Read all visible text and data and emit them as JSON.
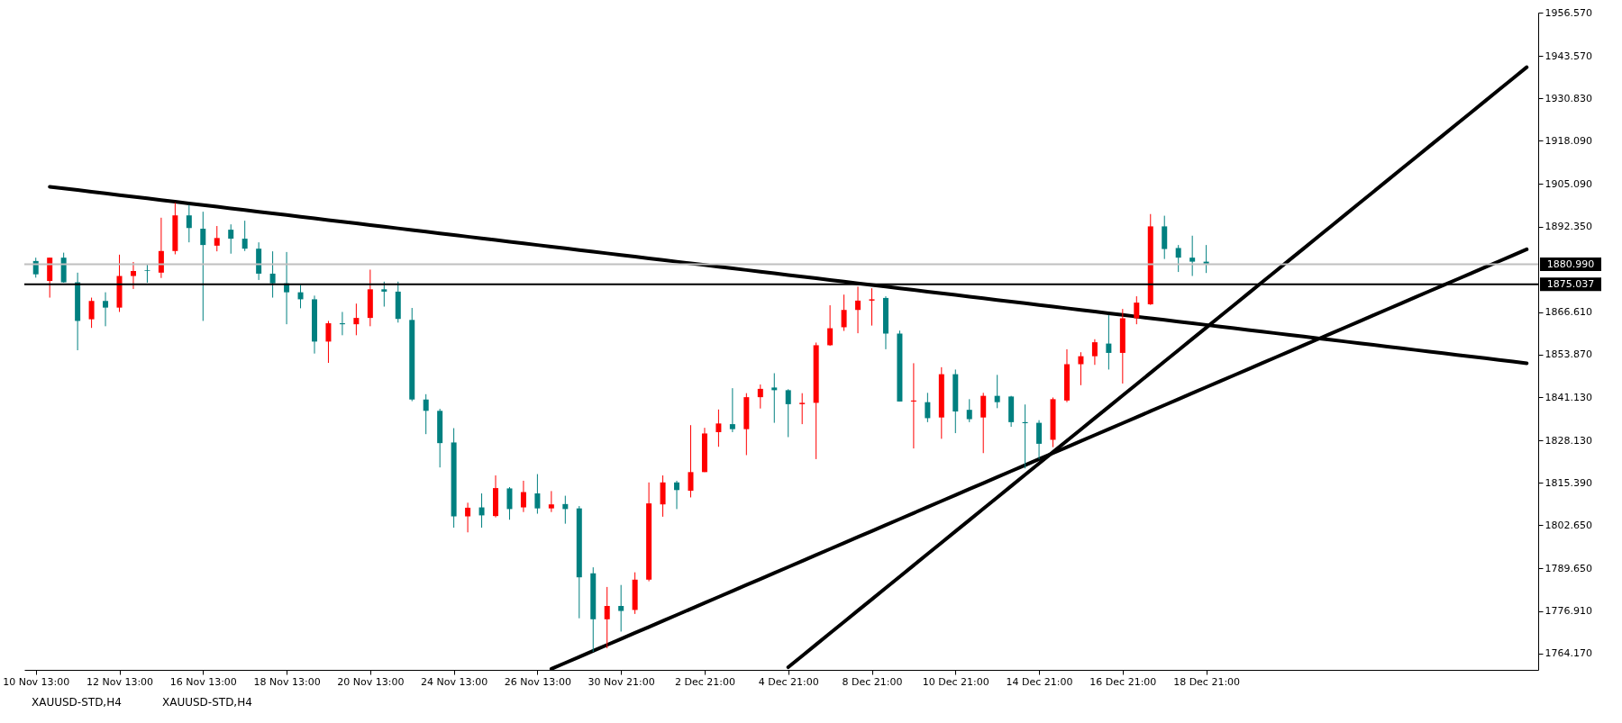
{
  "chart_data": {
    "type": "candlestick",
    "categories": [
      "10 Nov 13:00",
      null,
      null,
      null,
      null,
      null,
      "12 Nov 13:00",
      null,
      null,
      null,
      null,
      null,
      "16 Nov 13:00",
      null,
      null,
      null,
      null,
      null,
      "18 Nov 13:00",
      null,
      null,
      null,
      null,
      null,
      "20 Nov 13:00",
      null,
      null,
      null,
      null,
      null,
      "24 Nov 13:00",
      null,
      null,
      null,
      null,
      null,
      "26 Nov 13:00",
      null,
      null,
      null,
      null,
      null,
      "30 Nov 21:00",
      null,
      null,
      null,
      null,
      null,
      "2 Dec 21:00",
      null,
      null,
      null,
      null,
      null,
      "4 Dec 21:00",
      null,
      null,
      null,
      null,
      null,
      "8 Dec 21:00",
      null,
      null,
      null,
      null,
      null,
      "10 Dec 21:00",
      null,
      null,
      null,
      null,
      null,
      "14 Dec 21:00",
      null,
      null,
      null,
      null,
      null,
      "16 Dec 21:00",
      null,
      null,
      null,
      null,
      null,
      "18 Dec 21:00",
      null,
      null,
      null,
      null,
      null,
      null,
      null,
      null,
      null,
      null,
      null,
      null,
      null,
      null,
      null,
      null,
      null,
      null,
      null,
      null,
      null,
      null,
      null
    ],
    "ohlc": [
      [
        1882,
        1883,
        1877,
        1878
      ],
      [
        1876,
        1883,
        1871,
        1883
      ],
      [
        1883,
        1884.5,
        1875.5,
        1875.6
      ],
      [
        1875.6,
        1878.5,
        1855.2,
        1864
      ],
      [
        1864.5,
        1871,
        1861.9,
        1870
      ],
      [
        1870,
        1872.6,
        1862.4,
        1868
      ],
      [
        1868,
        1883.9,
        1866.7,
        1877.5
      ],
      [
        1877.5,
        1881.7,
        1873.6,
        1879
      ],
      [
        1879.2,
        1881,
        1875.5,
        1879
      ],
      [
        1878.5,
        1895,
        1876.9,
        1885
      ],
      [
        1885,
        1899.5,
        1884,
        1895.7
      ],
      [
        1895.7,
        1898.9,
        1887.6,
        1891.9
      ],
      [
        1891.7,
        1896.8,
        1864,
        1886.8
      ],
      [
        1886.6,
        1892.5,
        1884.9,
        1888.9
      ],
      [
        1891.4,
        1893,
        1884.2,
        1888.7
      ],
      [
        1888.7,
        1894.1,
        1885,
        1885.7
      ],
      [
        1885.7,
        1887.6,
        1876.3,
        1878.2
      ],
      [
        1878.2,
        1884.9,
        1871,
        1875.3
      ],
      [
        1875.3,
        1884.7,
        1863,
        1872.6
      ],
      [
        1872.6,
        1874.8,
        1867.8,
        1870.5
      ],
      [
        1870.5,
        1871.6,
        1854.2,
        1857.8
      ],
      [
        1857.8,
        1864,
        1851.4,
        1863.3
      ],
      [
        1863.3,
        1866.7,
        1859.7,
        1863
      ],
      [
        1863,
        1869.2,
        1859.7,
        1864.9
      ],
      [
        1864.9,
        1879.4,
        1862.4,
        1873.5
      ],
      [
        1873.5,
        1875.8,
        1868.3,
        1872.8
      ],
      [
        1872.8,
        1875.8,
        1863.5,
        1864.6
      ],
      [
        1864.3,
        1867.9,
        1839.9,
        1840.4
      ],
      [
        1840.4,
        1842,
        1830,
        1837
      ],
      [
        1837,
        1837.6,
        1820,
        1827.3
      ],
      [
        1827.5,
        1831.8,
        1801.9,
        1805.3
      ],
      [
        1805.3,
        1809.4,
        1800.5,
        1807.9
      ],
      [
        1808,
        1812.2,
        1801.9,
        1805.6
      ],
      [
        1805.4,
        1817.6,
        1805,
        1813.8
      ],
      [
        1813.7,
        1814.1,
        1804.3,
        1807.5
      ],
      [
        1808,
        1816,
        1806.6,
        1812.6
      ],
      [
        1812.2,
        1818,
        1806.1,
        1807.7
      ],
      [
        1807.7,
        1812.9,
        1806.6,
        1808.9
      ],
      [
        1809,
        1811.5,
        1803.1,
        1807.5
      ],
      [
        1807.7,
        1808.4,
        1774.7,
        1787
      ],
      [
        1788.2,
        1790,
        1764.6,
        1774.4
      ],
      [
        1774.4,
        1784.1,
        1765.7,
        1778.4
      ],
      [
        1778.4,
        1784.7,
        1770.7,
        1776.9
      ],
      [
        1777.2,
        1788.5,
        1776,
        1786.3
      ],
      [
        1786.3,
        1815.5,
        1785.8,
        1809.2
      ],
      [
        1808.9,
        1817.6,
        1805.2,
        1815.5
      ],
      [
        1815.5,
        1816,
        1807.5,
        1813.2
      ],
      [
        1813,
        1832.7,
        1811,
        1818.6
      ],
      [
        1818.6,
        1831.9,
        1818.6,
        1830.2
      ],
      [
        1830.6,
        1837.4,
        1826.2,
        1833.2
      ],
      [
        1833,
        1843.8,
        1830.6,
        1831.5
      ],
      [
        1831.5,
        1842.3,
        1823.7,
        1841.1
      ],
      [
        1841.1,
        1844.9,
        1837.7,
        1843.6
      ],
      [
        1844,
        1848.3,
        1833.4,
        1843.2
      ],
      [
        1843.2,
        1843.5,
        1829.1,
        1839
      ],
      [
        1839,
        1842.3,
        1833,
        1839.4
      ],
      [
        1839.4,
        1857.5,
        1822.5,
        1856.7
      ],
      [
        1856.7,
        1868.7,
        1856.5,
        1861.8
      ],
      [
        1862.1,
        1871.9,
        1861,
        1867.3
      ],
      [
        1867.3,
        1874.3,
        1860.3,
        1870.1
      ],
      [
        1870.1,
        1873.8,
        1862.6,
        1870.5
      ],
      [
        1870.9,
        1871.4,
        1855.5,
        1860.2
      ],
      [
        1860.2,
        1861.1,
        1839.8,
        1839.8
      ],
      [
        1839.8,
        1851.3,
        1825.7,
        1840.1
      ],
      [
        1839.6,
        1842.4,
        1833.6,
        1834.8
      ],
      [
        1835,
        1850.1,
        1828.6,
        1848
      ],
      [
        1848,
        1849.4,
        1830.3,
        1836.8
      ],
      [
        1837.3,
        1840.5,
        1833.6,
        1834.5
      ],
      [
        1835,
        1842.4,
        1824.3,
        1841.5
      ],
      [
        1841.5,
        1847.8,
        1837.8,
        1839.6
      ],
      [
        1841.3,
        1841.5,
        1832.2,
        1833.6
      ],
      [
        1833.6,
        1838.9,
        1819.7,
        1833.3
      ],
      [
        1833.4,
        1834.2,
        1822.5,
        1827.1
      ],
      [
        1828.3,
        1841,
        1826.1,
        1840.5
      ],
      [
        1840.1,
        1855.5,
        1839.6,
        1851
      ],
      [
        1851,
        1854.6,
        1844.7,
        1853.4
      ],
      [
        1853.4,
        1858.5,
        1850.8,
        1857.6
      ],
      [
        1857.2,
        1865.8,
        1849.4,
        1854.4
      ],
      [
        1854.4,
        1867.6,
        1845.2,
        1864.8
      ],
      [
        1864.8,
        1871.4,
        1863,
        1869.5
      ],
      [
        1869,
        1896.1,
        1868.8,
        1892.4
      ],
      [
        1892.4,
        1895.6,
        1882.6,
        1885.6
      ],
      [
        1885.9,
        1886.8,
        1878.7,
        1883
      ],
      [
        1883,
        1889.6,
        1877.5,
        1881.8
      ],
      [
        1881.8,
        1886.8,
        1878.4,
        1881.2
      ],
      null,
      null,
      null,
      null,
      null,
      null,
      null,
      null,
      null,
      null,
      null,
      null,
      null,
      null,
      null,
      null,
      null,
      null,
      null,
      null,
      null,
      null,
      null
    ],
    "colors": [
      "#008080",
      "#ff0000",
      "#008080",
      "#008080",
      "#ff0000",
      "#008080",
      "#ff0000",
      "#ff0000",
      "#008080",
      "#ff0000",
      "#ff0000",
      "#008080",
      "#008080",
      "#ff0000",
      "#008080",
      "#008080",
      "#008080",
      "#008080",
      "#008080",
      "#008080",
      "#008080",
      "#ff0000",
      "#008080",
      "#ff0000",
      "#ff0000",
      "#008080",
      "#008080",
      "#008080",
      "#008080",
      "#008080",
      "#008080",
      "#ff0000",
      "#008080",
      "#ff0000",
      "#008080",
      "#ff0000",
      "#008080",
      "#ff0000",
      "#008080",
      "#008080",
      "#008080",
      "#ff0000",
      "#008080",
      "#ff0000",
      "#ff0000",
      "#ff0000",
      "#008080",
      "#ff0000",
      "#ff0000",
      "#ff0000",
      "#008080",
      "#ff0000",
      "#ff0000",
      "#008080",
      "#008080",
      "#ff0000",
      "#ff0000",
      "#ff0000",
      "#ff0000",
      "#ff0000",
      "#ff0000",
      "#008080",
      "#008080",
      "#ff0000",
      "#008080",
      "#ff0000",
      "#008080",
      "#008080",
      "#ff0000",
      "#008080",
      "#008080",
      "#008080",
      "#008080",
      "#ff0000",
      "#ff0000",
      "#ff0000",
      "#ff0000",
      "#008080",
      "#ff0000",
      "#ff0000",
      "#ff0000",
      "#008080",
      "#008080",
      "#008080",
      "#008080",
      null,
      null,
      null,
      null,
      null,
      null,
      null,
      null,
      null,
      null,
      null,
      null,
      null,
      null,
      null,
      null,
      null,
      null,
      null,
      null,
      null,
      null,
      null
    ],
    "series": [
      {
        "type": "line",
        "color": "#000000",
        "values": [
          null,
          1904.3,
          1903.8,
          1903.3,
          1902.8,
          1902.3,
          1901.8,
          1901.3,
          1900.8,
          1900.3,
          1899.8,
          1899.3,
          1898.8,
          1898.3,
          1897.8,
          1897.3,
          1896.8,
          1896.3,
          1895.8,
          1895.3,
          1894.8,
          1894.3,
          1893.8,
          1893.3,
          1892.8,
          1892.3,
          1891.8,
          1891.3,
          1890.8,
          1890.3,
          1889.8,
          1889.3,
          1888.8,
          1888.3,
          1887.8,
          1887.3,
          1886.8,
          1886.3,
          1885.8,
          1885.3,
          1884.8,
          1884.3,
          1883.8,
          1883.3,
          1882.8,
          1882.3,
          1881.8,
          1881.3,
          1880.8,
          1880.3,
          1879.8,
          1879.3,
          1878.8,
          1878.3,
          1877.8,
          1877.3,
          1876.8,
          1876.3,
          1875.8,
          1875.3,
          1874.8,
          1874.3,
          1873.8,
          1873.3,
          1872.8,
          1872.3,
          1871.8,
          1871.3,
          1870.8,
          1870.3,
          1869.8,
          1869.3,
          1868.8,
          1868.3,
          1867.8,
          1867.3,
          1866.8,
          1866.3,
          1865.8,
          1865.3,
          1864.8,
          1864.3,
          1863.8,
          1863.3,
          1862.8,
          1862.3,
          1861.8,
          1861.3,
          1860.8,
          1860.3,
          1859.8,
          1859.3,
          1858.8,
          1858.3,
          1857.8,
          1857.3,
          1856.8,
          1856.3,
          1855.8,
          1855.3,
          1854.8,
          1854.3,
          1853.8,
          1853.3,
          1852.8,
          1852.3,
          1851.8,
          1851.3
        ]
      },
      {
        "type": "line",
        "color": "#000000",
        "values": [
          null,
          null,
          null,
          null,
          null,
          null,
          null,
          null,
          null,
          null,
          null,
          null,
          null,
          null,
          null,
          null,
          null,
          null,
          null,
          null,
          null,
          null,
          null,
          null,
          null,
          null,
          null,
          null,
          null,
          null,
          null,
          null,
          null,
          null,
          null,
          null,
          null,
          1759.5,
          1761.3,
          1763.1,
          1764.9,
          1766.7,
          1768.5,
          1770.3,
          1772.1,
          1773.9,
          1775.7,
          1777.5,
          1779.3,
          1781.1,
          1782.9,
          1784.7,
          1786.5,
          1788.3,
          1790.1,
          1791.9,
          1793.7,
          1795.5,
          1797.3,
          1799.1,
          1800.9,
          1802.7,
          1804.5,
          1806.3,
          1808.1,
          1809.9,
          1811.7,
          1813.5,
          1815.3,
          1817.1,
          1818.9,
          1820.7,
          1822.5,
          1824.3,
          1826.1,
          1827.9,
          1829.7,
          1831.5,
          1833.3,
          1835.1,
          1836.9,
          1838.7,
          1840.5,
          1842.3,
          1844.1,
          1845.9,
          1847.7,
          1849.5,
          1851.3,
          1853.1,
          1854.9,
          1856.7,
          1858.5,
          1860.3,
          1862.1,
          1863.9,
          1865.7,
          1867.5,
          1869.3,
          1871.1,
          1872.9,
          1874.7,
          1876.5,
          1878.3,
          1880.1,
          1881.9,
          1883.7,
          1885.5
        ]
      },
      {
        "type": "line",
        "color": "#000000",
        "values": [
          null,
          null,
          null,
          null,
          null,
          null,
          null,
          null,
          null,
          null,
          null,
          null,
          null,
          null,
          null,
          null,
          null,
          null,
          null,
          null,
          null,
          null,
          null,
          null,
          null,
          null,
          null,
          null,
          null,
          null,
          null,
          null,
          null,
          null,
          null,
          null,
          null,
          null,
          null,
          null,
          null,
          null,
          null,
          null,
          null,
          null,
          null,
          null,
          null,
          null,
          null,
          null,
          null,
          null,
          1760.0,
          1763.4,
          1766.8,
          1770.2,
          1773.6,
          1777.0,
          1780.4,
          1783.8,
          1787.2,
          1790.6,
          1794.0,
          1797.4,
          1800.8,
          1804.2,
          1807.6,
          1811.0,
          1814.4,
          1817.8,
          1821.2,
          1824.6,
          1828.0,
          1831.4,
          1834.8,
          1838.2,
          1841.6,
          1845.0,
          1848.4,
          1851.8,
          1855.2,
          1858.6,
          1862.0,
          1865.4,
          1868.8,
          1872.2,
          1875.6,
          1879.0,
          1882.4,
          1885.8,
          1889.2,
          1892.6,
          1896.0,
          1899.4,
          1902.8,
          1906.2,
          1909.6,
          1913.0,
          1916.4,
          1919.8,
          1923.2,
          1926.6,
          1930.0,
          1933.4,
          1936.8,
          1940.2
        ]
      }
    ],
    "ref_lines": [
      {
        "axis": "y",
        "value": 1880.99,
        "label": "1880.990",
        "color": "#c0c0c0"
      },
      {
        "axis": "y",
        "value": 1875.037,
        "label": "1875.037",
        "color": "#000000"
      }
    ],
    "ylim": [
      1759.2,
      1956.6
    ],
    "yticks": [
      {
        "value": 1764.17,
        "label": "1764.170"
      },
      {
        "value": 1776.91,
        "label": "1776.910"
      },
      {
        "value": 1789.65,
        "label": "1789.650"
      },
      {
        "value": 1802.65,
        "label": "1802.650"
      },
      {
        "value": 1815.39,
        "label": "1815.390"
      },
      {
        "value": 1828.13,
        "label": "1828.130"
      },
      {
        "value": 1841.13,
        "label": "1841.130"
      },
      {
        "value": 1853.87,
        "label": "1853.870"
      },
      {
        "value": 1866.61,
        "label": "1866.610"
      },
      {
        "value": 1892.35,
        "label": "1892.350"
      },
      {
        "value": 1905.09,
        "label": "1905.090"
      },
      {
        "value": 1918.09,
        "label": "1918.090"
      },
      {
        "value": 1930.83,
        "label": "1930.830"
      },
      {
        "value": 1943.57,
        "label": "1943.570"
      },
      {
        "value": 1956.57,
        "label": "1956.570"
      }
    ],
    "annotations": [
      "XAUUSD-STD,H4",
      "XAUUSD-STD,H4"
    ]
  }
}
